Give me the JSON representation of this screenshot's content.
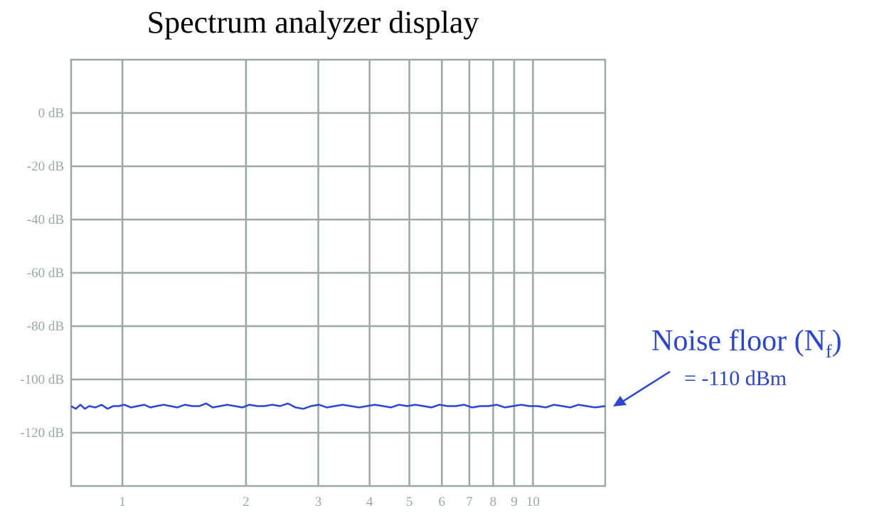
{
  "chart_data": {
    "type": "line",
    "title": "Spectrum analyzer display",
    "xlabel": "",
    "ylabel": "",
    "x_scale": "log",
    "xlim": [
      0.75,
      15
    ],
    "ylim": [
      -140,
      20
    ],
    "x_ticks": [
      1,
      2,
      3,
      4,
      5,
      6,
      7,
      8,
      9,
      10
    ],
    "x_tick_labels": [
      "1",
      "2",
      "3",
      "4",
      "5",
      "6",
      "7",
      "8",
      "9",
      "10"
    ],
    "y_ticks": [
      0,
      -20,
      -40,
      -60,
      -80,
      -100,
      -120
    ],
    "y_tick_labels": [
      "0 dB",
      "-20 dB",
      "-40 dB",
      "-60 dB",
      "-80 dB",
      "-100 dB",
      "-120 dB"
    ],
    "grid": true,
    "series": [
      {
        "x": [
          0.75,
          0.77,
          0.79,
          0.81,
          0.83,
          0.86,
          0.89,
          0.92,
          0.95,
          0.98,
          1.01,
          1.05,
          1.09,
          1.13,
          1.17,
          1.21,
          1.26,
          1.31,
          1.36,
          1.42,
          1.48,
          1.54,
          1.6,
          1.66,
          1.73,
          1.8,
          1.88,
          1.96,
          2.04,
          2.13,
          2.22,
          2.32,
          2.42,
          2.53,
          2.64,
          2.76,
          2.88,
          3.01,
          3.15,
          3.29,
          3.44,
          3.6,
          3.77,
          3.94,
          4.12,
          4.31,
          4.51,
          4.72,
          4.94,
          5.17,
          5.41,
          5.66,
          5.92,
          6.2,
          6.49,
          6.79,
          7.11,
          7.44,
          7.79,
          8.16,
          8.54,
          8.94,
          9.36,
          9.8,
          10.26,
          10.74,
          11.25,
          11.78,
          12.33,
          12.91,
          13.52,
          14.16,
          15.0
        ],
        "values": [
          -110,
          -111,
          -109.5,
          -111,
          -110,
          -110.5,
          -109.5,
          -111,
          -110,
          -110,
          -109.5,
          -110.5,
          -110,
          -109.5,
          -110.5,
          -110,
          -109.5,
          -110,
          -110.5,
          -109.5,
          -110,
          -110,
          -109,
          -110.5,
          -110,
          -109.5,
          -110,
          -110.5,
          -109.5,
          -110,
          -110,
          -109.5,
          -110,
          -109,
          -110.5,
          -111,
          -110,
          -109.5,
          -110.5,
          -110,
          -109.5,
          -110,
          -110.5,
          -110,
          -109.5,
          -110,
          -110.5,
          -109.5,
          -110,
          -109.5,
          -110,
          -110.5,
          -109.5,
          -110,
          -110,
          -109.5,
          -110.5,
          -110,
          -110,
          -109.5,
          -110.5,
          -110,
          -109.5,
          -110,
          -110,
          -110.5,
          -109.5,
          -110,
          -110.5,
          -109.5,
          -110,
          -110.5,
          -110
        ]
      }
    ],
    "colors": {
      "grid": "#9aa8a6",
      "axis_text": "#9aa8a6",
      "trace": "#2a44d8",
      "title": "#000000"
    }
  },
  "annotation": {
    "title_main": "Noise floor (N",
    "title_sub": "f",
    "title_end": ")",
    "value": "= -110 dBm"
  }
}
